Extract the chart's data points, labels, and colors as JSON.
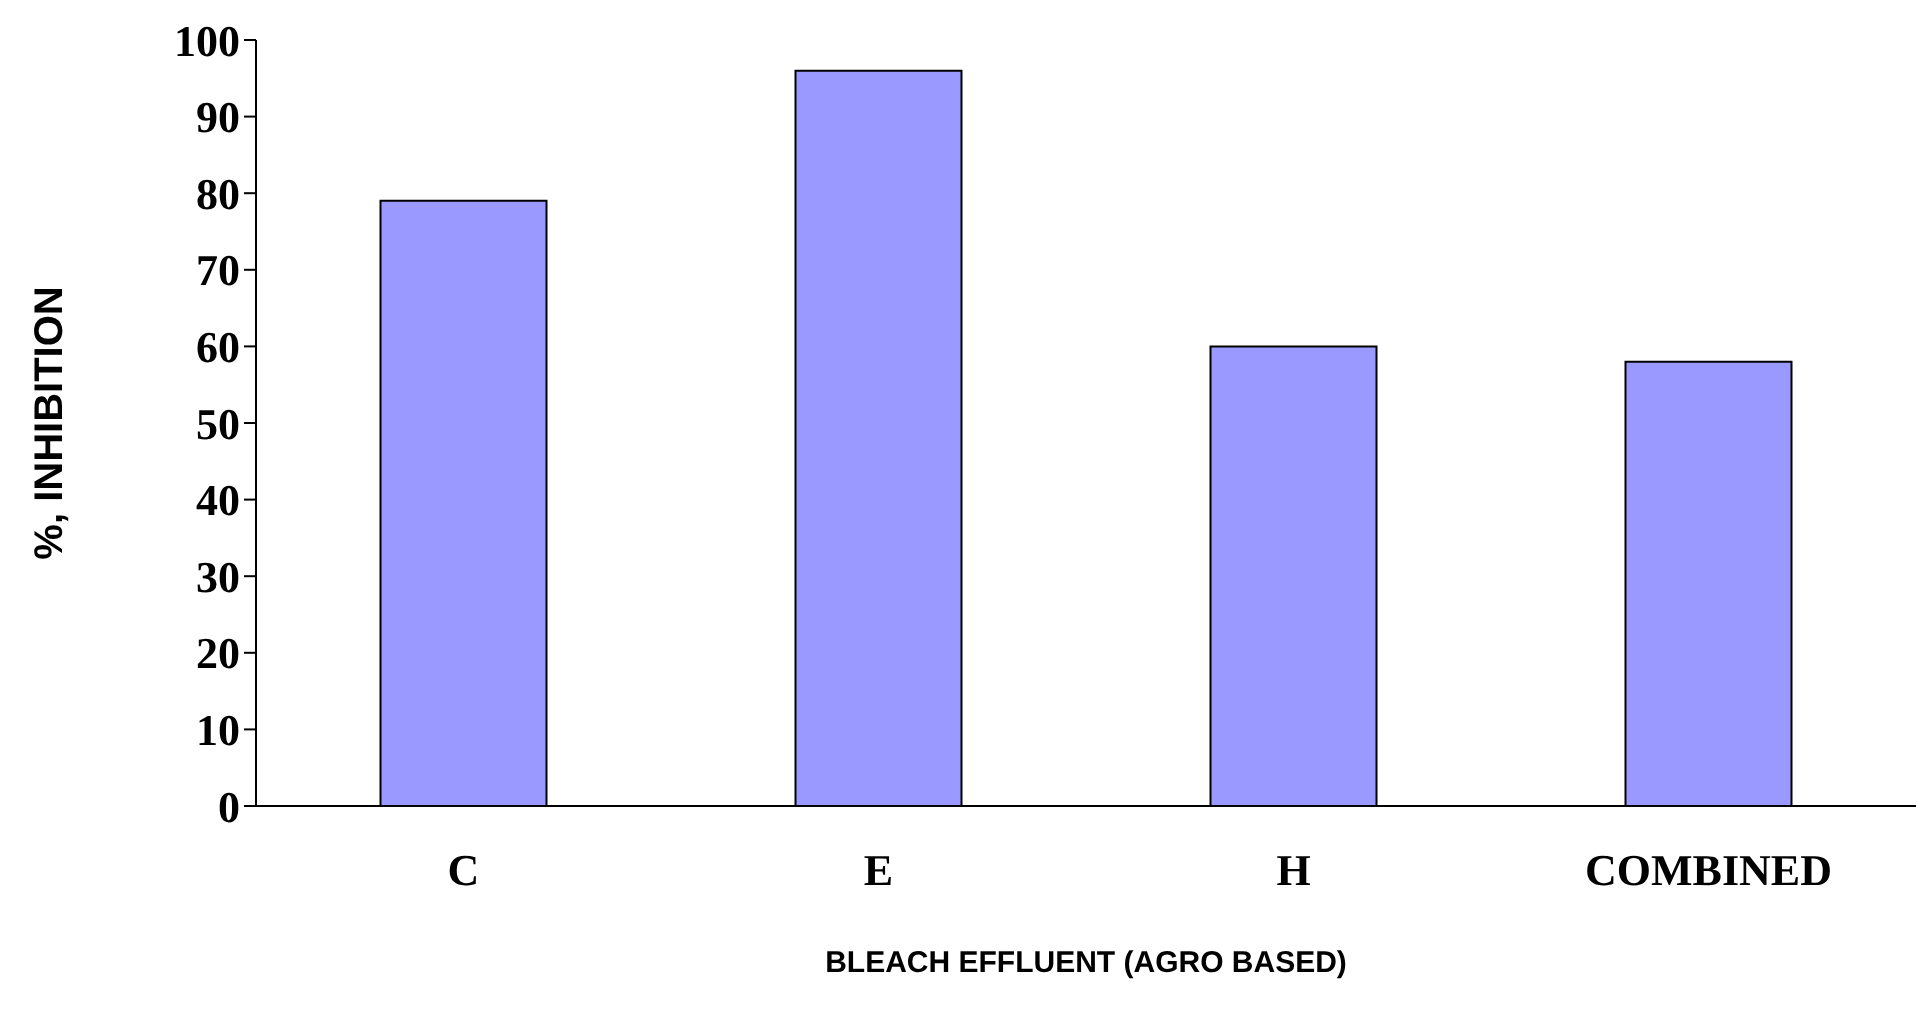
{
  "chart_data": {
    "type": "bar",
    "categories": [
      "C",
      "E",
      "H",
      "COMBINED"
    ],
    "values": [
      79,
      96,
      60,
      58
    ],
    "color": "#9999ff",
    "xlabel": "BLEACH EFFLUENT (AGRO BASED)",
    "ylabel": "%, INHIBITION",
    "ylim": [
      0,
      100
    ],
    "yticks": [
      0,
      10,
      20,
      30,
      40,
      50,
      60,
      70,
      80,
      90,
      100
    ],
    "grid": false,
    "legend": false
  }
}
